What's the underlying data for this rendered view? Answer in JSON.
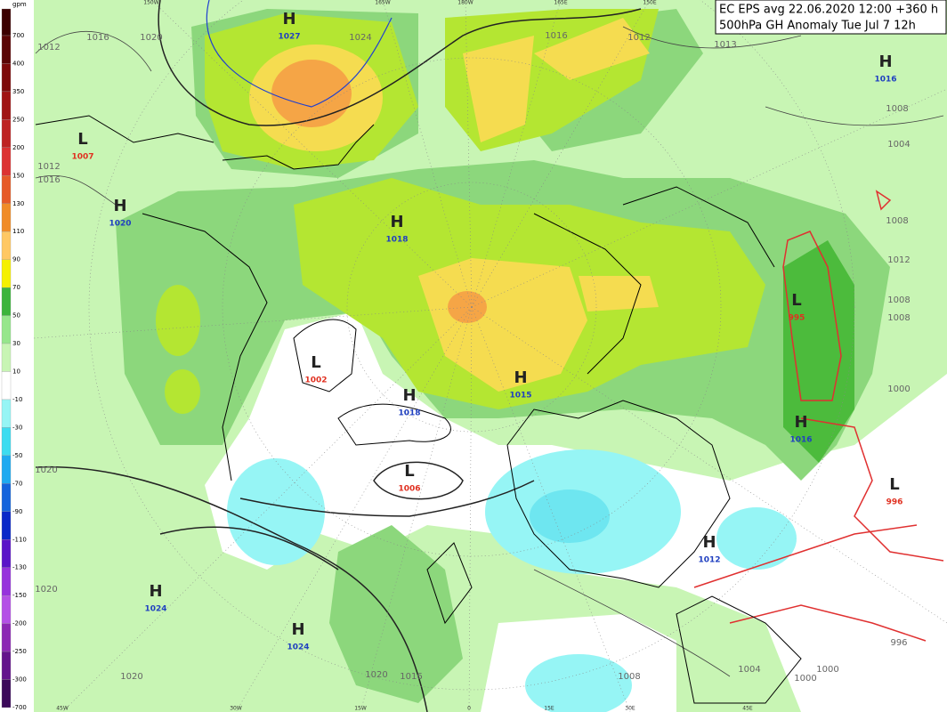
{
  "header": {
    "line1": "EC EPS avg 22.06.2020 12:00 +360 h",
    "line2": "500hPa GH Anomaly Tue Jul 7 12h"
  },
  "colorbar": {
    "unit": "gpm",
    "labels": [
      700,
      400,
      350,
      250,
      200,
      150,
      130,
      110,
      90,
      70,
      50,
      30,
      10,
      -10,
      -30,
      -50,
      -70,
      -90,
      -110,
      -130,
      -150,
      -200,
      -250,
      -300,
      -700
    ]
  },
  "centers": [
    {
      "letter": "H",
      "value": 1027
    },
    {
      "letter": "L",
      "value": 1007
    },
    {
      "letter": "H",
      "value": 1020
    },
    {
      "letter": "H",
      "value": 1018
    },
    {
      "letter": "L",
      "value": 1002
    },
    {
      "letter": "H",
      "value": 1015
    },
    {
      "letter": "H",
      "value": 1018
    },
    {
      "letter": "L",
      "value": 1006
    },
    {
      "letter": "H",
      "value": 1024
    },
    {
      "letter": "H",
      "value": 1024
    },
    {
      "letter": "H",
      "value": 1012
    },
    {
      "letter": "H",
      "value": 1016
    },
    {
      "letter": "L",
      "value": 995
    },
    {
      "letter": "H",
      "value": 1016
    },
    {
      "letter": "L",
      "value": 996
    }
  ],
  "isobar_labels": [
    1016,
    1020,
    1024,
    1016,
    1012,
    1012,
    1012,
    1016,
    1008,
    1004,
    1008,
    1012,
    1008,
    1008,
    1000,
    1020,
    1020,
    1020,
    1020,
    1016,
    1008,
    1004,
    1000,
    996,
    1000,
    1013
  ],
  "longitude_labels": [
    "150W",
    "165W",
    "180W",
    "165E",
    "150E",
    "45W",
    "30W",
    "15W",
    "0",
    "15E",
    "30E",
    "45E"
  ]
}
